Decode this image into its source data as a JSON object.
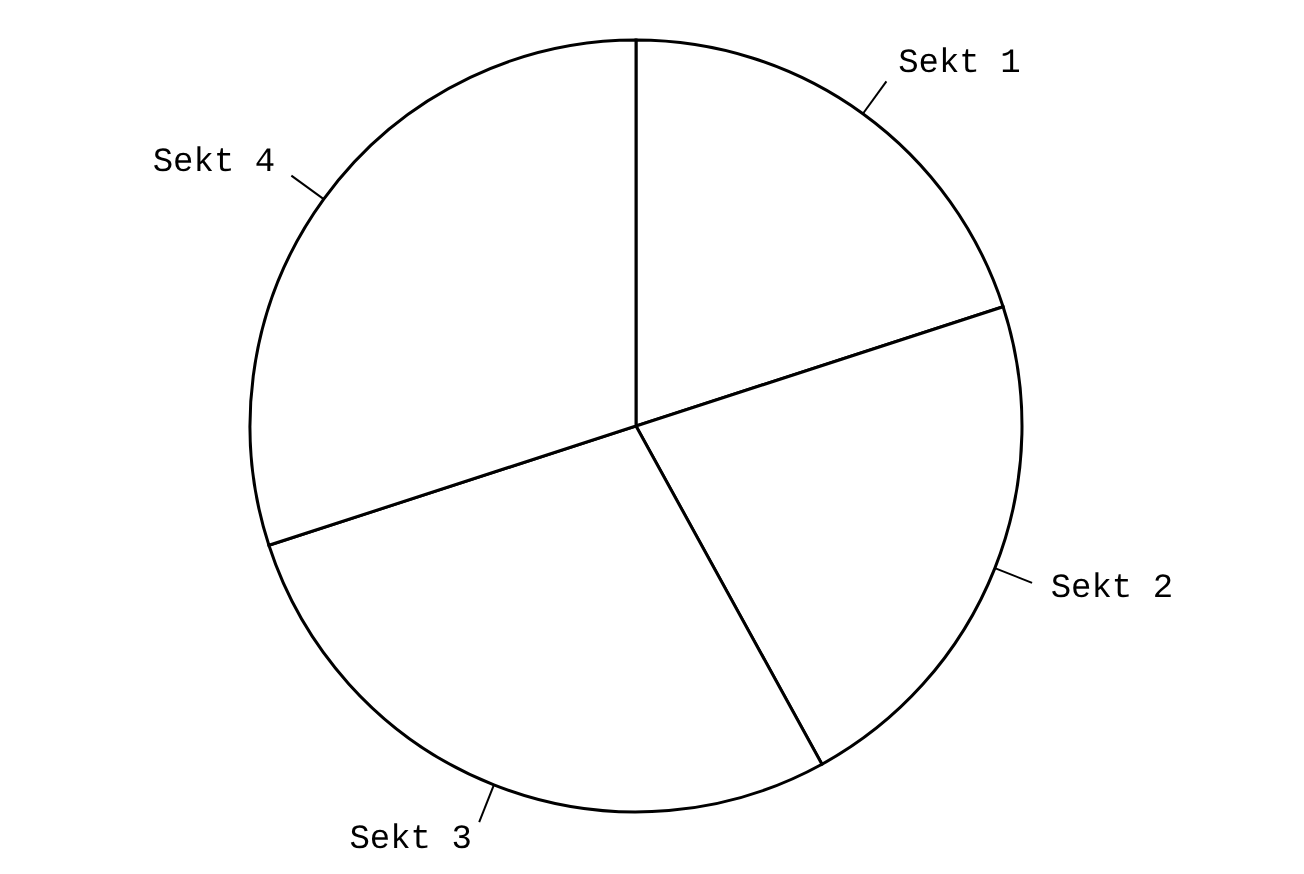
{
  "chart_data": {
    "type": "pie",
    "categories": [
      "Sekt 1",
      "Sekt 2",
      "Sekt 3",
      "Sekt 4"
    ],
    "values": [
      20,
      22,
      28,
      30
    ],
    "colors": [
      "#ffffff",
      "#ffffff",
      "#ffffff",
      "#ffffff"
    ]
  }
}
